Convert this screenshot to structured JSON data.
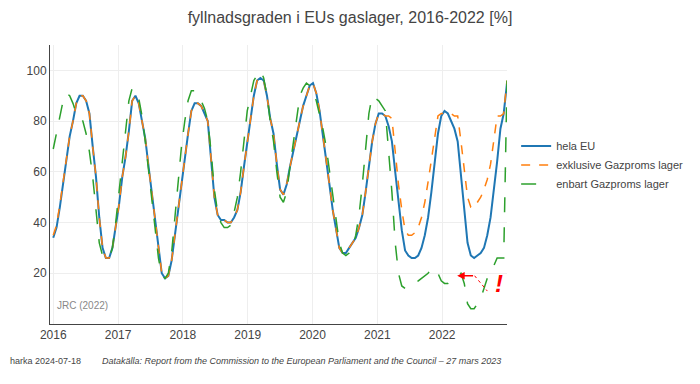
{
  "chart_data": {
    "type": "line",
    "title": "fyllnadsgraden i EUs gaslager, 2016-2022 [%]",
    "annotations": [
      "JRC (2022)",
      "!",
      "harka 2024-07-18",
      "Datakälla: Report from the Commission to the European Parliament and the Council – 27 mars 2023"
    ],
    "x": [
      2016,
      2016.0507,
      2016.1014,
      2016.1522,
      2016.2029,
      2016.2536,
      2016.3043,
      2016.3551,
      2016.4058,
      2016.4565,
      2016.5072,
      2016.558,
      2016.6087,
      2016.6594,
      2016.7101,
      2016.7609,
      2016.8116,
      2016.8623,
      2016.913,
      2016.9638,
      2017.0145,
      2017.0652,
      2017.1159,
      2017.1667,
      2017.2174,
      2017.2681,
      2017.3188,
      2017.3696,
      2017.4203,
      2017.471,
      2017.5217,
      2017.5725,
      2017.6232,
      2017.6739,
      2017.7246,
      2017.7754,
      2017.8261,
      2017.8768,
      2017.9275,
      2017.9783,
      2018.029,
      2018.0797,
      2018.1304,
      2018.1812,
      2018.2319,
      2018.2826,
      2018.3333,
      2018.3841,
      2018.4348,
      2018.4855,
      2018.5362,
      2018.587,
      2018.6377,
      2018.6884,
      2018.7391,
      2018.7899,
      2018.8406,
      2018.8913,
      2018.942,
      2018.9928,
      2019.0435,
      2019.0942,
      2019.1449,
      2019.1957,
      2019.2464,
      2019.2971,
      2019.3478,
      2019.3986,
      2019.4493,
      2019.5,
      2019.5507,
      2019.6014,
      2019.6522,
      2019.7029,
      2019.7536,
      2019.8043,
      2019.8551,
      2019.9058,
      2019.9565,
      2020.0072,
      2020.058,
      2020.1087,
      2020.1594,
      2020.2101,
      2020.2609,
      2020.3116,
      2020.3623,
      2020.413,
      2020.4638,
      2020.5145,
      2020.5652,
      2020.6159,
      2020.6667,
      2020.7174,
      2020.7681,
      2020.8188,
      2020.8696,
      2020.9203,
      2020.971,
      2021.0217,
      2021.0725,
      2021.1232,
      2021.1739,
      2021.2246,
      2021.2754,
      2021.3261,
      2021.3768,
      2021.4275,
      2021.4783,
      2021.529,
      2021.5797,
      2021.6304,
      2021.6812,
      2021.7319,
      2021.7826,
      2021.8333,
      2021.8841,
      2021.9348,
      2021.9855,
      2022.0362,
      2022.087,
      2022.1377,
      2022.1884,
      2022.2391,
      2022.2899,
      2022.3406,
      2022.3913,
      2022.442,
      2022.4928,
      2022.5435,
      2022.5942,
      2022.6449,
      2022.6957,
      2022.7464,
      2022.7971,
      2022.8478,
      2022.8986,
      2022.9493,
      2023
    ],
    "series": [
      {
        "name": "hela EU",
        "line_style": "solid",
        "values": [
          34,
          38,
          46,
          55,
          65,
          74,
          80,
          87,
          90,
          90,
          88,
          83,
          70,
          58,
          42,
          30,
          26,
          26,
          30,
          38,
          47,
          58,
          66,
          76,
          88,
          90,
          87,
          80,
          73,
          62,
          52,
          40,
          30,
          20,
          18,
          19,
          25,
          35,
          45,
          56,
          67,
          75,
          84,
          87,
          87,
          86,
          83,
          80,
          65,
          50,
          43,
          41,
          41,
          40,
          40,
          42,
          45,
          52,
          62,
          72,
          82,
          90,
          96,
          97,
          96,
          90,
          81,
          75,
          63,
          53,
          51,
          55,
          62,
          68,
          74,
          80,
          86,
          90,
          94,
          95,
          91,
          84,
          75,
          65,
          55,
          45,
          38,
          30,
          28,
          28,
          30,
          32,
          34,
          38,
          43,
          52,
          62,
          72,
          79,
          83,
          83,
          82,
          78,
          72,
          60,
          48,
          37,
          29,
          27,
          26,
          26,
          27,
          30,
          35,
          42,
          52,
          64,
          75,
          82,
          84,
          83,
          80,
          77,
          72,
          58,
          45,
          32,
          27,
          26,
          27,
          28,
          30,
          35,
          42,
          52,
          64,
          77,
          83,
          95
        ]
      },
      {
        "name": "exklusive Gazproms lager",
        "line_style": "dash",
        "values": [
          35,
          39,
          47,
          56,
          65,
          74,
          80,
          87,
          90,
          90,
          88,
          83,
          70,
          58,
          42,
          30,
          26,
          26,
          30,
          38,
          47,
          58,
          66,
          76,
          88,
          90,
          87,
          80,
          73,
          62,
          52,
          40,
          30,
          20,
          18,
          19,
          25,
          35,
          45,
          56,
          67,
          75,
          84,
          87,
          87,
          86,
          83,
          80,
          65,
          50,
          43,
          41,
          41,
          40,
          40,
          42,
          45,
          52,
          62,
          72,
          82,
          90,
          96,
          97,
          96,
          90,
          81,
          75,
          63,
          53,
          51,
          55,
          62,
          68,
          74,
          80,
          86,
          90,
          94,
          95,
          91,
          84,
          75,
          65,
          55,
          45,
          38,
          30,
          28,
          28,
          30,
          32,
          34,
          38,
          43,
          52,
          62,
          72,
          79,
          83,
          83,
          82,
          82,
          81,
          68,
          55,
          45,
          37,
          35,
          35,
          36,
          38,
          42,
          48,
          56,
          65,
          75,
          82,
          83,
          83,
          83,
          83,
          82,
          82,
          72,
          60,
          50,
          46,
          46,
          48,
          50,
          53,
          57,
          63,
          72,
          82,
          82,
          83,
          96
        ]
      },
      {
        "name": "enbart Gazproms lager",
        "line_style": "longdash",
        "values": [
          69,
          75,
          82,
          88,
          91,
          90,
          87,
          83,
          82,
          80,
          75,
          68,
          58,
          46,
          32,
          27,
          26,
          26,
          30,
          40,
          52,
          66,
          78,
          88,
          93,
          92,
          89,
          82,
          72,
          60,
          48,
          36,
          26,
          19,
          18,
          20,
          28,
          42,
          56,
          70,
          80,
          88,
          92,
          92,
          91,
          88,
          85,
          80,
          68,
          53,
          44,
          40,
          38,
          38,
          39,
          44,
          50,
          60,
          72,
          84,
          90,
          96,
          98,
          100,
          97,
          90,
          80,
          72,
          60,
          50,
          48,
          52,
          62,
          72,
          82,
          90,
          93,
          95,
          94,
          92,
          88,
          83,
          77,
          70,
          60,
          50,
          40,
          32,
          28,
          27,
          28,
          30,
          35,
          43,
          55,
          70,
          83,
          90,
          89,
          88,
          86,
          84,
          68,
          52,
          32,
          20,
          15,
          14,
          15,
          16,
          17,
          17,
          18,
          19,
          20,
          22,
          22,
          20,
          17,
          16,
          16,
          17,
          18,
          19,
          20,
          16,
          8,
          6,
          6,
          8,
          10,
          14,
          18,
          20,
          23,
          26,
          26,
          26,
          96
        ]
      }
    ],
    "xlim": [
      2015.95,
      2023
    ],
    "xticks": [
      2016,
      2017,
      2018,
      2019,
      2020,
      2021,
      2022
    ],
    "ylim": [
      0,
      110
    ],
    "yticks": [
      20,
      40,
      60,
      80,
      100
    ],
    "grid": true,
    "legend": "right"
  }
}
